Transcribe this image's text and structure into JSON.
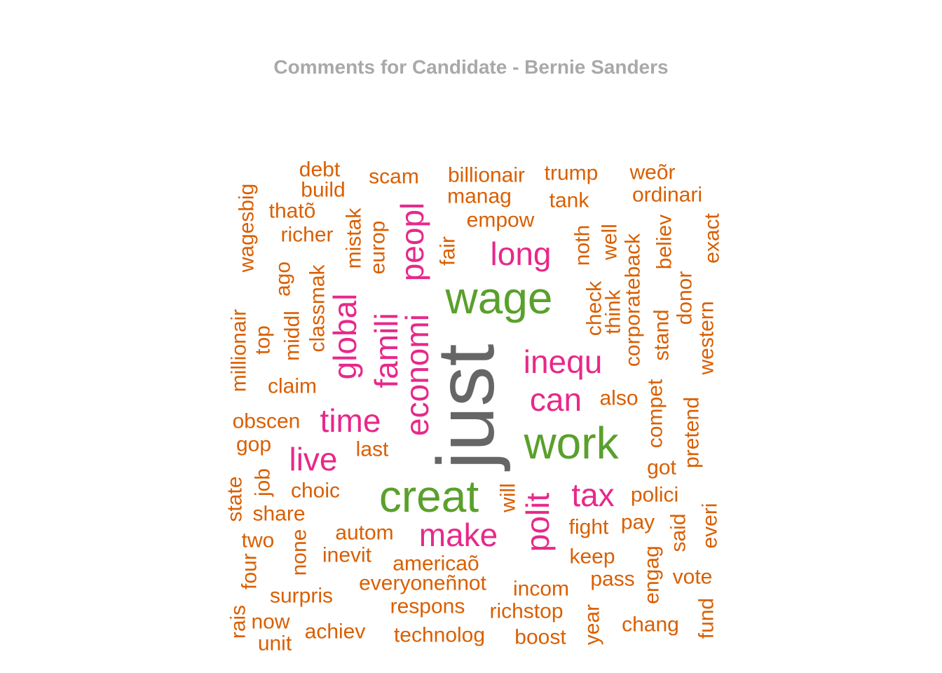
{
  "chart_data": {
    "type": "wordcloud",
    "title": "Comments for Candidate - Bernie Sanders",
    "colors": {
      "top": "#666666",
      "high": "#5aa02c",
      "mid": "#e7298a",
      "low": "#d95f02"
    },
    "words": [
      {
        "text": "just",
        "weight": 8,
        "color": "top"
      },
      {
        "text": "wage",
        "weight": 5,
        "color": "high"
      },
      {
        "text": "work",
        "weight": 5,
        "color": "high"
      },
      {
        "text": "creat",
        "weight": 5,
        "color": "high"
      },
      {
        "text": "peopl",
        "weight": 4,
        "color": "mid"
      },
      {
        "text": "economi",
        "weight": 4,
        "color": "mid"
      },
      {
        "text": "long",
        "weight": 4,
        "color": "mid"
      },
      {
        "text": "inequ",
        "weight": 4,
        "color": "mid"
      },
      {
        "text": "famili",
        "weight": 4,
        "color": "mid"
      },
      {
        "text": "global",
        "weight": 4,
        "color": "mid"
      },
      {
        "text": "time",
        "weight": 4,
        "color": "mid"
      },
      {
        "text": "live",
        "weight": 4,
        "color": "mid"
      },
      {
        "text": "can",
        "weight": 4,
        "color": "mid"
      },
      {
        "text": "tax",
        "weight": 4,
        "color": "mid"
      },
      {
        "text": "make",
        "weight": 4,
        "color": "mid"
      },
      {
        "text": "polit",
        "weight": 4,
        "color": "mid"
      },
      {
        "text": "debt",
        "weight": 2,
        "color": "low"
      },
      {
        "text": "build",
        "weight": 2,
        "color": "low"
      },
      {
        "text": "scam",
        "weight": 2,
        "color": "low"
      },
      {
        "text": "billionair",
        "weight": 2,
        "color": "low"
      },
      {
        "text": "trump",
        "weight": 2,
        "color": "low"
      },
      {
        "text": "weõr",
        "weight": 2,
        "color": "low"
      },
      {
        "text": "manag",
        "weight": 2,
        "color": "low"
      },
      {
        "text": "ordinari",
        "weight": 2,
        "color": "low"
      },
      {
        "text": "wagesbig",
        "weight": 2,
        "color": "low"
      },
      {
        "text": "thatõ",
        "weight": 2,
        "color": "low"
      },
      {
        "text": "tank",
        "weight": 2,
        "color": "low"
      },
      {
        "text": "mistak",
        "weight": 2,
        "color": "low"
      },
      {
        "text": "empow",
        "weight": 2,
        "color": "low"
      },
      {
        "text": "exact",
        "weight": 2,
        "color": "low"
      },
      {
        "text": "richer",
        "weight": 2,
        "color": "low"
      },
      {
        "text": "europ",
        "weight": 2,
        "color": "low"
      },
      {
        "text": "fair",
        "weight": 2,
        "color": "low"
      },
      {
        "text": "noth",
        "weight": 2,
        "color": "low"
      },
      {
        "text": "well",
        "weight": 2,
        "color": "low"
      },
      {
        "text": "corporateback",
        "weight": 2,
        "color": "low"
      },
      {
        "text": "believ",
        "weight": 2,
        "color": "low"
      },
      {
        "text": "ago",
        "weight": 2,
        "color": "low"
      },
      {
        "text": "classmak",
        "weight": 2,
        "color": "low"
      },
      {
        "text": "donor",
        "weight": 2,
        "color": "low"
      },
      {
        "text": "check",
        "weight": 2,
        "color": "low"
      },
      {
        "text": "think",
        "weight": 2,
        "color": "low"
      },
      {
        "text": "millionair",
        "weight": 2,
        "color": "low"
      },
      {
        "text": "middl",
        "weight": 2,
        "color": "low"
      },
      {
        "text": "western",
        "weight": 2,
        "color": "low"
      },
      {
        "text": "top",
        "weight": 2,
        "color": "low"
      },
      {
        "text": "stand",
        "weight": 2,
        "color": "low"
      },
      {
        "text": "claim",
        "weight": 2,
        "color": "low"
      },
      {
        "text": "also",
        "weight": 2,
        "color": "low"
      },
      {
        "text": "compet",
        "weight": 2,
        "color": "low"
      },
      {
        "text": "pretend",
        "weight": 2,
        "color": "low"
      },
      {
        "text": "obscen",
        "weight": 2,
        "color": "low"
      },
      {
        "text": "gop",
        "weight": 2,
        "color": "low"
      },
      {
        "text": "last",
        "weight": 2,
        "color": "low"
      },
      {
        "text": "got",
        "weight": 2,
        "color": "low"
      },
      {
        "text": "job",
        "weight": 2,
        "color": "low"
      },
      {
        "text": "state",
        "weight": 2,
        "color": "low"
      },
      {
        "text": "choic",
        "weight": 2,
        "color": "low"
      },
      {
        "text": "will",
        "weight": 2,
        "color": "low"
      },
      {
        "text": "polici",
        "weight": 2,
        "color": "low"
      },
      {
        "text": "share",
        "weight": 2,
        "color": "low"
      },
      {
        "text": "everi",
        "weight": 2,
        "color": "low"
      },
      {
        "text": "said",
        "weight": 2,
        "color": "low"
      },
      {
        "text": "autom",
        "weight": 2,
        "color": "low"
      },
      {
        "text": "fight",
        "weight": 2,
        "color": "low"
      },
      {
        "text": "pay",
        "weight": 2,
        "color": "low"
      },
      {
        "text": "two",
        "weight": 2,
        "color": "low"
      },
      {
        "text": "none",
        "weight": 2,
        "color": "low"
      },
      {
        "text": "inevit",
        "weight": 2,
        "color": "low"
      },
      {
        "text": "engag",
        "weight": 2,
        "color": "low"
      },
      {
        "text": "americaõ",
        "weight": 2,
        "color": "low"
      },
      {
        "text": "keep",
        "weight": 2,
        "color": "low"
      },
      {
        "text": "four",
        "weight": 2,
        "color": "low"
      },
      {
        "text": "everyoneñnot",
        "weight": 2,
        "color": "low"
      },
      {
        "text": "pass",
        "weight": 2,
        "color": "low"
      },
      {
        "text": "vote",
        "weight": 2,
        "color": "low"
      },
      {
        "text": "incom",
        "weight": 2,
        "color": "low"
      },
      {
        "text": "surpris",
        "weight": 2,
        "color": "low"
      },
      {
        "text": "rais",
        "weight": 2,
        "color": "low"
      },
      {
        "text": "respons",
        "weight": 2,
        "color": "low"
      },
      {
        "text": "richstop",
        "weight": 2,
        "color": "low"
      },
      {
        "text": "year",
        "weight": 2,
        "color": "low"
      },
      {
        "text": "fund",
        "weight": 2,
        "color": "low"
      },
      {
        "text": "now",
        "weight": 2,
        "color": "low"
      },
      {
        "text": "chang",
        "weight": 2,
        "color": "low"
      },
      {
        "text": "achiev",
        "weight": 2,
        "color": "low"
      },
      {
        "text": "technolog",
        "weight": 2,
        "color": "low"
      },
      {
        "text": "boost",
        "weight": 2,
        "color": "low"
      },
      {
        "text": "unit",
        "weight": 2,
        "color": "low"
      }
    ]
  }
}
